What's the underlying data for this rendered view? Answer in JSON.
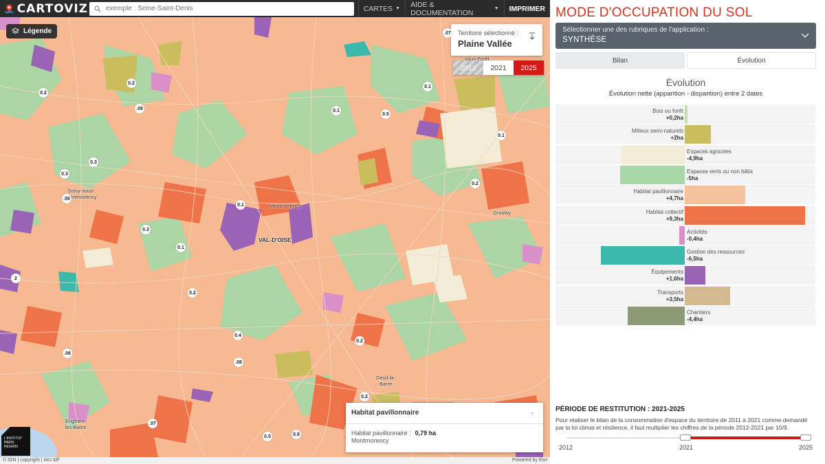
{
  "app": {
    "name": "CARTOVIZ"
  },
  "search": {
    "placeholder": "exemple : Seine-Saint-Denis"
  },
  "nav": {
    "cartes": "CARTES",
    "aide": "AIDE & DOCUMENTATION",
    "imprimer": "IMPRIMER"
  },
  "map": {
    "legend_label": "Légende",
    "territory_label": "Territoire sélectionné :",
    "territory_value": "Plaine Vallée",
    "years": [
      "2012",
      "2021",
      "2025"
    ],
    "places": [
      "Soisy-sous-Montmorency",
      "Montmorency",
      "VAL-D'OISE",
      "Groslay",
      "Deuil-la-Barre",
      "Enghien-les-Bains",
      "sous-Forêt"
    ],
    "values": [
      "0.2",
      ".09",
      "0.2",
      "0.1",
      "0.5",
      "0.1",
      "0.3",
      "0.3",
      ".06",
      "0.1",
      "0.1",
      "0.2",
      "0.3",
      "2",
      "0.2",
      "0.4",
      ".08",
      "0.2",
      ".06",
      "0.1",
      ".07",
      "0.5",
      "0.8",
      ".07",
      "0.2"
    ],
    "institut_logo": "L'INSTITUT PARIS REGION",
    "attribution_left": "© IGN | copyright | IAU IdF",
    "attribution_right": "Powered by Esri"
  },
  "popup": {
    "title": "Habitat pavillonnaire",
    "label": "Habitat pavillonnaire :",
    "value": "0,79 ha",
    "place": "Montmorency"
  },
  "panel": {
    "title": "MODE D'OCCUPATION DU SOL",
    "rubric_label": "Sélectionner une des rubriques de l'application :",
    "rubric_value": "SYNTHÈSE",
    "tab_bilan": "Bilan",
    "tab_evolution": "Évolution",
    "evo_title": "Évolution",
    "evo_subtitle": "Évolution nette (apparition - disparition) entre 2 dates",
    "restitution_title": "PÉRIODE DE RESTITUTION : 2021-2025",
    "restitution_text": "Pour réaliser le bilan de la consommation d'espace du territoire de 2011 à 2021 comme demandé par la loi climat et résilience, il faut multiplier les chiffres de la période 2012-2021 par 10/9.",
    "slider_labels": [
      "2012",
      "2021",
      "2025"
    ],
    "slider_range": [
      "2021",
      "2025"
    ]
  },
  "chart_data": {
    "type": "bar",
    "orientation": "horizontal",
    "unit": "ha",
    "categories": [
      "Bois ou forêt",
      "Milieux semi-naturels",
      "Espaces agricoles",
      "Espaces verts ou non bâtis",
      "Habitat pavillonnaire",
      "Habitat collectif",
      "Activités",
      "Gestion des ressources",
      "Équipements",
      "Transports",
      "Chantiers"
    ],
    "value_labels": [
      "+0,2ha",
      "+2ha",
      "-4,9ha",
      "-5ha",
      "+4,7ha",
      "+9,3ha",
      "-0,4ha",
      "-6,5ha",
      "+1,6ha",
      "+3,5ha",
      "-4,4ha"
    ],
    "values": [
      0.2,
      2,
      -4.9,
      -5,
      4.7,
      9.3,
      -0.4,
      -6.5,
      1.6,
      3.5,
      -4.4
    ],
    "colors": [
      "#c6dfa3",
      "#c9bd5e",
      "#f3ecd6",
      "#a9d7a7",
      "#f6c29e",
      "#ef7348",
      "#d98fc8",
      "#3db8ad",
      "#9a63b5",
      "#d4b991",
      "#8c9a76"
    ],
    "title": "Évolution",
    "subtitle": "Évolution nette (apparition - disparition) entre 2 dates"
  }
}
